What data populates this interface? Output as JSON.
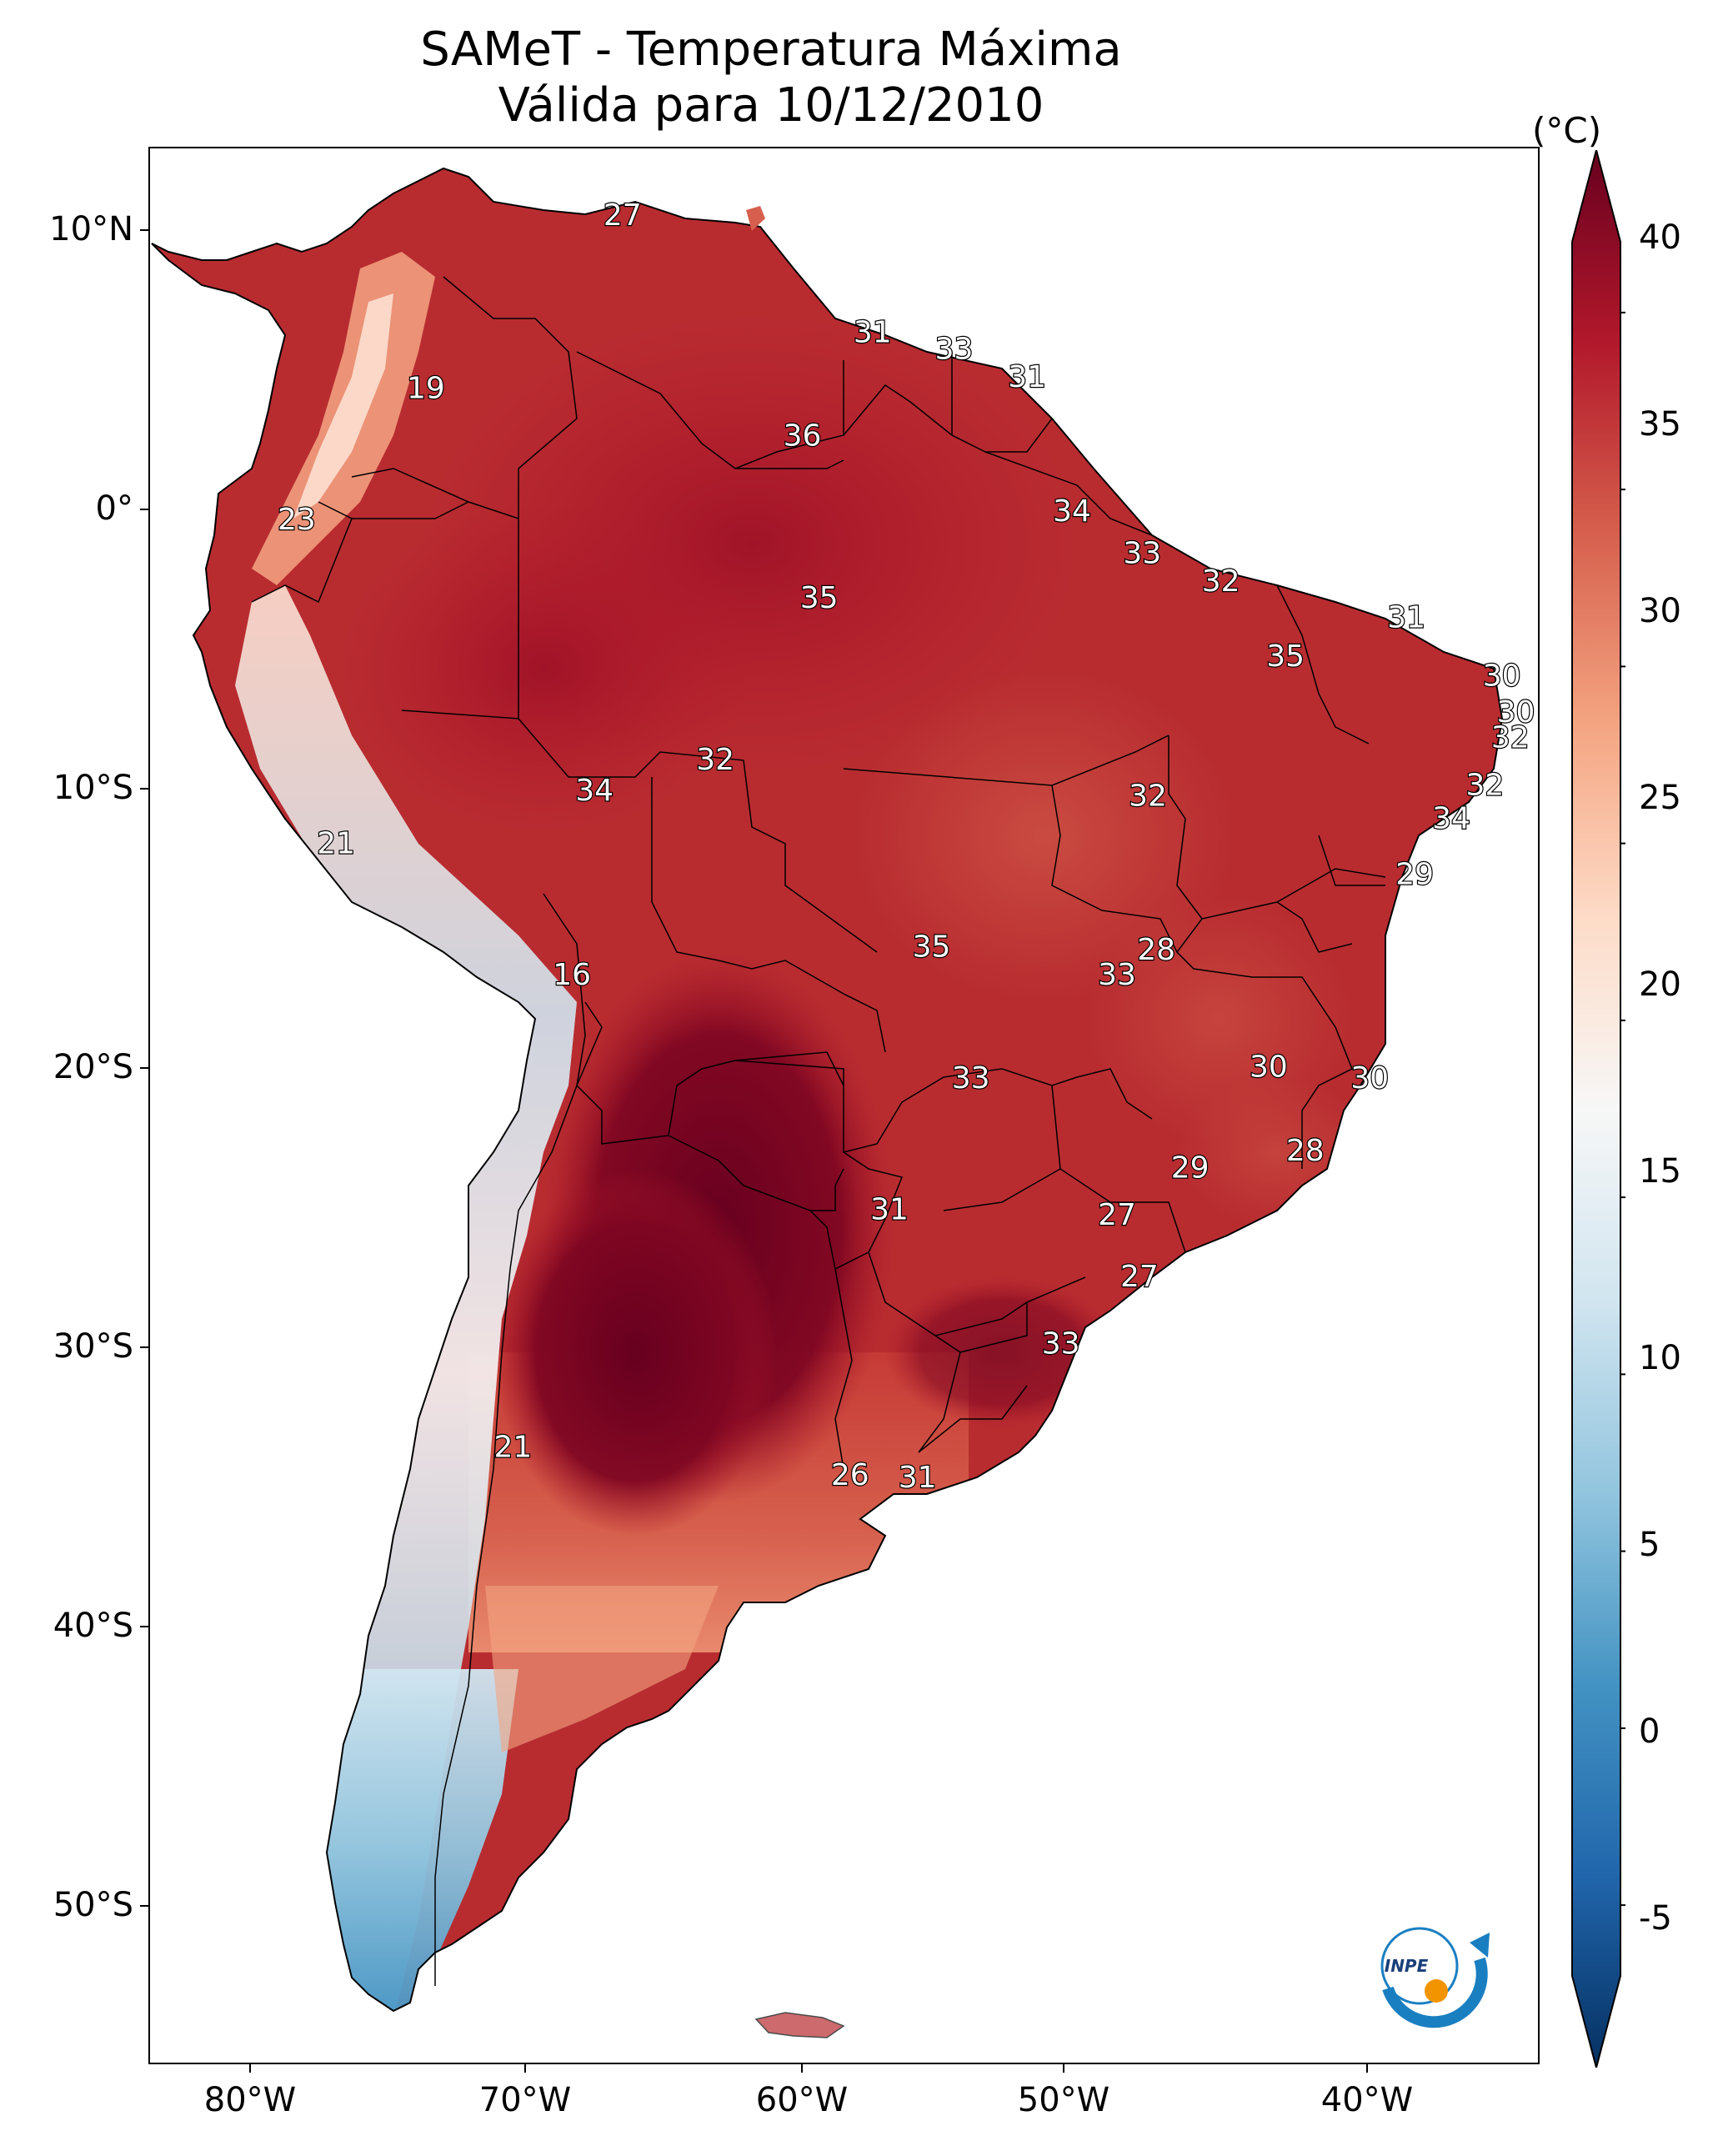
{
  "title": "SAMeT - Temperatura Máxima",
  "subtitle": "Válida para 10/12/2010",
  "lat_ticks": [
    "10°N",
    "0°",
    "10°S",
    "20°S",
    "30°S",
    "40°S",
    "50°S"
  ],
  "lon_ticks": [
    "80°W",
    "70°W",
    "60°W",
    "50°W",
    "40°W"
  ],
  "colorbar": {
    "unit": "(°C)",
    "min": -7,
    "max": 42,
    "labels": [
      "40",
      "35",
      "30",
      "25",
      "20",
      "15",
      "10",
      "5",
      "0",
      "-5"
    ],
    "colors": [
      "#053061",
      "#2166ac",
      "#4393c3",
      "#92c5de",
      "#d1e5f0",
      "#f7f7f7",
      "#fddbc7",
      "#f4a582",
      "#d6604d",
      "#b2182b",
      "#67001f"
    ]
  },
  "isotherm_labels": [
    {
      "text": "27",
      "lon": -66.8,
      "lat": 10.6
    },
    {
      "text": "19",
      "lon": -73.8,
      "lat": 4.4
    },
    {
      "text": "31",
      "lon": -57.9,
      "lat": 6.4
    },
    {
      "text": "33",
      "lon": -55.0,
      "lat": 5.8
    },
    {
      "text": "31",
      "lon": -52.4,
      "lat": 4.8
    },
    {
      "text": "36",
      "lon": -60.4,
      "lat": 2.7
    },
    {
      "text": "23",
      "lon": -78.4,
      "lat": -0.3
    },
    {
      "text": "34",
      "lon": -50.8,
      "lat": 0.0
    },
    {
      "text": "33",
      "lon": -48.3,
      "lat": -1.5
    },
    {
      "text": "35",
      "lon": -59.8,
      "lat": -3.1
    },
    {
      "text": "32",
      "lon": -45.5,
      "lat": -2.5
    },
    {
      "text": "31",
      "lon": -38.9,
      "lat": -3.8
    },
    {
      "text": "35",
      "lon": -43.2,
      "lat": -5.2
    },
    {
      "text": "30",
      "lon": -35.5,
      "lat": -5.9
    },
    {
      "text": "30",
      "lon": -35.0,
      "lat": -7.2
    },
    {
      "text": "32",
      "lon": -35.2,
      "lat": -8.1
    },
    {
      "text": "32",
      "lon": -63.5,
      "lat": -8.9
    },
    {
      "text": "32",
      "lon": -36.1,
      "lat": -9.8
    },
    {
      "text": "34",
      "lon": -67.8,
      "lat": -10.0
    },
    {
      "text": "32",
      "lon": -48.1,
      "lat": -10.2
    },
    {
      "text": "34",
      "lon": -37.3,
      "lat": -11.0
    },
    {
      "text": "21",
      "lon": -77.0,
      "lat": -11.9
    },
    {
      "text": "29",
      "lon": -38.6,
      "lat": -13.0
    },
    {
      "text": "35",
      "lon": -55.8,
      "lat": -15.6
    },
    {
      "text": "28",
      "lon": -47.8,
      "lat": -15.7
    },
    {
      "text": "16",
      "lon": -68.6,
      "lat": -16.6
    },
    {
      "text": "33",
      "lon": -49.2,
      "lat": -16.6
    },
    {
      "text": "30",
      "lon": -43.8,
      "lat": -19.9
    },
    {
      "text": "30",
      "lon": -40.2,
      "lat": -20.3
    },
    {
      "text": "33",
      "lon": -54.4,
      "lat": -20.3
    },
    {
      "text": "28",
      "lon": -42.5,
      "lat": -22.9
    },
    {
      "text": "29",
      "lon": -46.6,
      "lat": -23.5
    },
    {
      "text": "31",
      "lon": -57.3,
      "lat": -25.0
    },
    {
      "text": "27",
      "lon": -49.2,
      "lat": -25.2
    },
    {
      "text": "27",
      "lon": -48.4,
      "lat": -27.4
    },
    {
      "text": "33",
      "lon": -51.2,
      "lat": -29.8
    },
    {
      "text": "21",
      "lon": -70.7,
      "lat": -33.5
    },
    {
      "text": "26",
      "lon": -58.7,
      "lat": -34.5
    },
    {
      "text": "31",
      "lon": -56.3,
      "lat": -34.6
    }
  ],
  "logo": {
    "text": "INPE"
  }
}
